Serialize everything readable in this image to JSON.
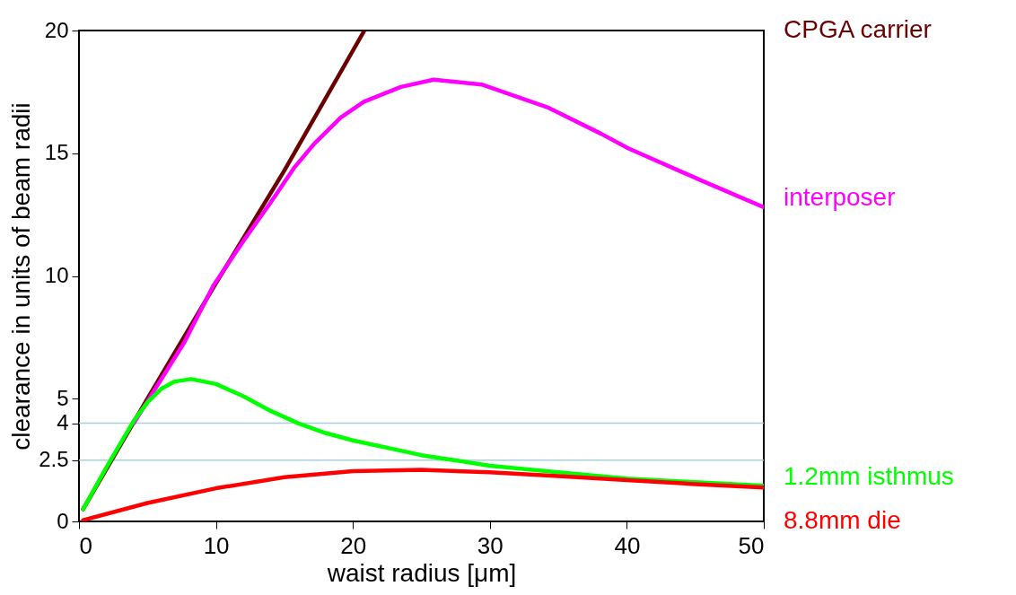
{
  "chart_data": {
    "type": "line",
    "xlabel": "waist radius [μm]",
    "ylabel": "clearance in units of beam radii",
    "xlim": [
      0,
      50
    ],
    "xticks": [
      0,
      10,
      20,
      30,
      40,
      50
    ],
    "ylim": [
      0,
      20
    ],
    "yticks": [
      0,
      2.5,
      4,
      5,
      10,
      15,
      20
    ],
    "grid": false,
    "legend": false,
    "ref_lines": [
      {
        "axis": "y",
        "value": 4,
        "color": "#a8d0d8"
      },
      {
        "axis": "y",
        "value": 2.5,
        "color": "#a8d0d8"
      }
    ],
    "series": [
      {
        "name": "CPGA carrier",
        "color": "#6b0000",
        "x": [
          0.3,
          5,
          10,
          15,
          20.84
        ],
        "values": [
          0.5,
          5,
          9.7,
          14.3,
          20
        ]
      },
      {
        "name": "interposer",
        "color": "#ff00ff",
        "x": [
          4,
          7.7,
          9.8,
          12.1,
          14.0,
          15.7,
          17.2,
          19.1,
          20.8,
          23.5,
          25.9,
          29.4,
          34.3,
          38.1,
          40.1,
          45.4,
          50
        ],
        "values": [
          4,
          7.3,
          9.6,
          11.5,
          13.0,
          14.4,
          15.4,
          16.45,
          17.1,
          17.7,
          18.0,
          17.8,
          16.85,
          15.8,
          15.2,
          13.9,
          12.8
        ]
      },
      {
        "name": "1.2mm isthmus",
        "color": "#00ff00",
        "x": [
          0.3,
          2,
          4,
          5,
          6,
          7,
          8.2,
          10,
          12,
          14,
          16,
          18,
          20,
          25,
          30,
          35,
          40,
          45,
          50
        ],
        "values": [
          0.5,
          2.2,
          4.1,
          4.85,
          5.4,
          5.7,
          5.8,
          5.6,
          5.1,
          4.5,
          4.0,
          3.6,
          3.3,
          2.7,
          2.27,
          2.0,
          1.75,
          1.6,
          1.45
        ]
      },
      {
        "name": "8.8mm die",
        "color": "#ff0000",
        "x": [
          0.3,
          5,
          10,
          15,
          20,
          25,
          30,
          35,
          40,
          45,
          50
        ],
        "values": [
          0.05,
          0.75,
          1.35,
          1.8,
          2.05,
          2.1,
          2.0,
          1.85,
          1.68,
          1.52,
          1.38
        ]
      }
    ]
  }
}
